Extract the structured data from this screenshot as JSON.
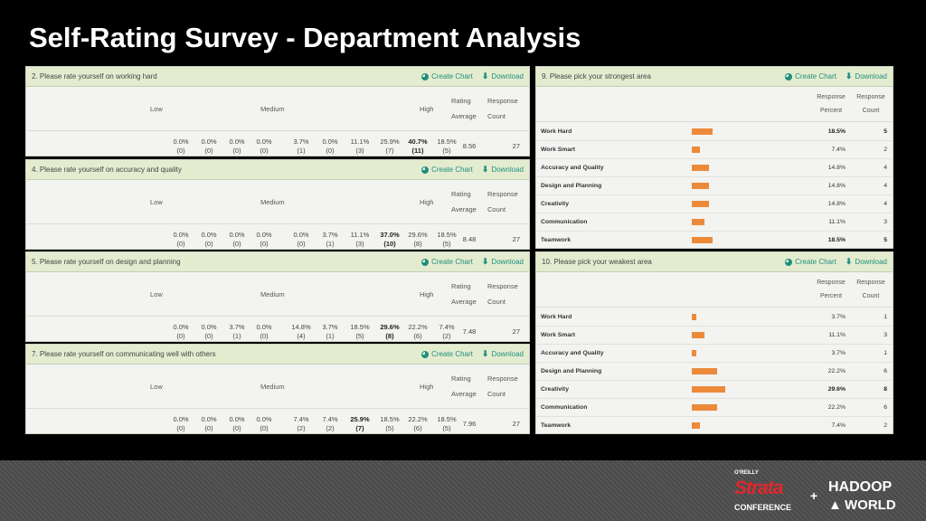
{
  "slide": {
    "title": "Self-Rating Survey - Department Analysis"
  },
  "actions": {
    "create_chart": "Create Chart",
    "download": "Download"
  },
  "rating_header": {
    "low": "Low",
    "medium": "Medium",
    "high": "High",
    "rating": "Rating",
    "average": "Average",
    "response": "Response",
    "count": "Count"
  },
  "rating_panels": [
    {
      "question": "2. Please rate yourself on working hard",
      "cells": [
        [
          "0.0%",
          "(0)"
        ],
        [
          "0.0%",
          "(0)"
        ],
        [
          "0.0%",
          "(0)"
        ],
        [
          "0.0%",
          "(0)"
        ],
        [
          "3.7%",
          "(1)"
        ],
        [
          "0.0%",
          "(0)"
        ],
        [
          "11.1%",
          "(3)"
        ],
        [
          "25.9%",
          "(7)"
        ],
        [
          "40.7%",
          "(11)"
        ],
        [
          "18.5%",
          "(5)"
        ]
      ],
      "average": "8.56",
      "count": "27"
    },
    {
      "question": "4. Please rate yourself on accuracy and quality",
      "cells": [
        [
          "0.0%",
          "(0)"
        ],
        [
          "0.0%",
          "(0)"
        ],
        [
          "0.0%",
          "(0)"
        ],
        [
          "0.0%",
          "(0)"
        ],
        [
          "0.0%",
          "(0)"
        ],
        [
          "3.7%",
          "(1)"
        ],
        [
          "11.1%",
          "(3)"
        ],
        [
          "37.0%",
          "(10)"
        ],
        [
          "29.6%",
          "(8)"
        ],
        [
          "18.5%",
          "(5)"
        ]
      ],
      "average": "8.48",
      "count": "27"
    },
    {
      "question": "5. Please rate yourself on design and planning",
      "cells": [
        [
          "0.0%",
          "(0)"
        ],
        [
          "0.0%",
          "(0)"
        ],
        [
          "3.7%",
          "(1)"
        ],
        [
          "0.0%",
          "(0)"
        ],
        [
          "14.8%",
          "(4)"
        ],
        [
          "3.7%",
          "(1)"
        ],
        [
          "18.5%",
          "(5)"
        ],
        [
          "29.6%",
          "(8)"
        ],
        [
          "22.2%",
          "(6)"
        ],
        [
          "7.4%",
          "(2)"
        ]
      ],
      "average": "7.48",
      "count": "27"
    },
    {
      "question": "7. Please rate yourself on communicating well with others",
      "cells": [
        [
          "0.0%",
          "(0)"
        ],
        [
          "0.0%",
          "(0)"
        ],
        [
          "0.0%",
          "(0)"
        ],
        [
          "0.0%",
          "(0)"
        ],
        [
          "7.4%",
          "(2)"
        ],
        [
          "7.4%",
          "(2)"
        ],
        [
          "25.9%",
          "(7)"
        ],
        [
          "18.5%",
          "(5)"
        ],
        [
          "22.2%",
          "(6)"
        ],
        [
          "18.5%",
          "(5)"
        ]
      ],
      "average": "7.96",
      "count": "27"
    }
  ],
  "choice_header": {
    "response": "Response",
    "percent": "Percent",
    "count": "Count"
  },
  "choice_panels": [
    {
      "question": "9. Please pick your strongest area",
      "rows": [
        {
          "label": "Work Hard",
          "percent": "18.5%",
          "count": "5",
          "value": 18.5
        },
        {
          "label": "Work Smart",
          "percent": "7.4%",
          "count": "2",
          "value": 7.4
        },
        {
          "label": "Accuracy and Quality",
          "percent": "14.8%",
          "count": "4",
          "value": 14.8
        },
        {
          "label": "Design and Planning",
          "percent": "14.8%",
          "count": "4",
          "value": 14.8
        },
        {
          "label": "Creativity",
          "percent": "14.8%",
          "count": "4",
          "value": 14.8
        },
        {
          "label": "Communication",
          "percent": "11.1%",
          "count": "3",
          "value": 11.1
        },
        {
          "label": "Teamwork",
          "percent": "18.5%",
          "count": "5",
          "value": 18.5
        }
      ]
    },
    {
      "question": "10. Please pick your weakest area",
      "rows": [
        {
          "label": "Work Hard",
          "percent": "3.7%",
          "count": "1",
          "value": 3.7
        },
        {
          "label": "Work Smart",
          "percent": "11.1%",
          "count": "3",
          "value": 11.1
        },
        {
          "label": "Accuracy and Quality",
          "percent": "3.7%",
          "count": "1",
          "value": 3.7
        },
        {
          "label": "Design and Planning",
          "percent": "22.2%",
          "count": "6",
          "value": 22.2
        },
        {
          "label": "Creativity",
          "percent": "29.6%",
          "count": "8",
          "value": 29.6
        },
        {
          "label": "Communication",
          "percent": "22.2%",
          "count": "6",
          "value": 22.2
        },
        {
          "label": "Teamwork",
          "percent": "7.4%",
          "count": "2",
          "value": 7.4
        }
      ]
    }
  ],
  "colors": {
    "bar": "#ec8a3a",
    "link": "#1f8f7e",
    "header": "#e4ecd0"
  },
  "logo": {
    "oreilly": "O'REILLY",
    "strata": "Strata",
    "conference": "CONFERENCE",
    "plus": "+",
    "hadoop": "HADOOP",
    "world": "WORLD"
  }
}
